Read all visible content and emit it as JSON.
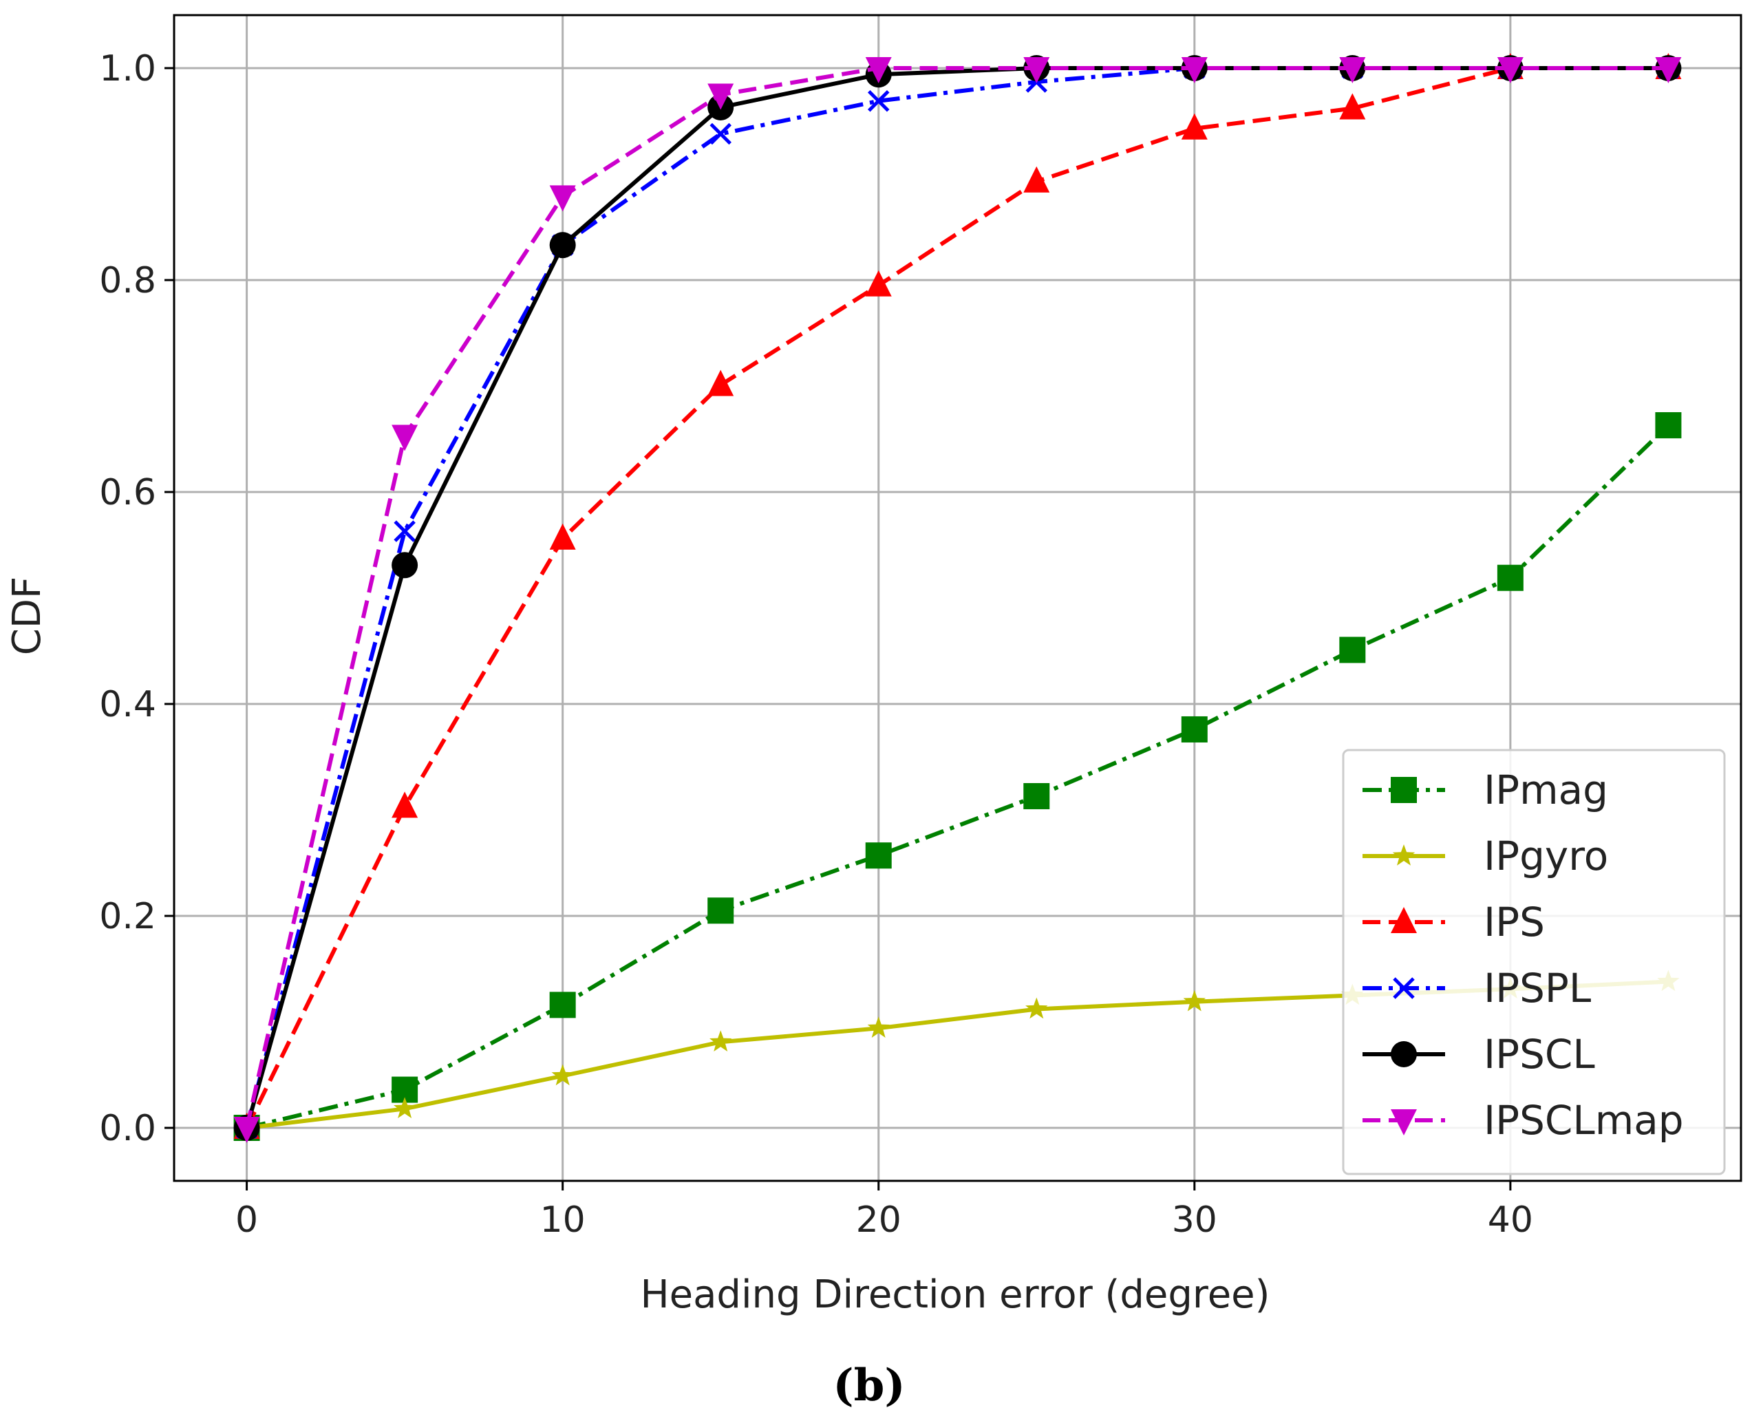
{
  "chart_data": {
    "type": "line",
    "xlabel": "Heading Direction error (degree)",
    "ylabel": "CDF",
    "xlim": [
      -2.3,
      47.3
    ],
    "ylim": [
      -0.05,
      1.05
    ],
    "x_ticks": [
      "0",
      "10",
      "20",
      "30",
      "40"
    ],
    "x_tick_values": [
      0,
      10,
      20,
      30,
      40
    ],
    "y_ticks": [
      "0.0",
      "0.2",
      "0.4",
      "0.6",
      "0.8",
      "1.0"
    ],
    "y_tick_values": [
      0.0,
      0.2,
      0.4,
      0.6,
      0.8,
      1.0
    ],
    "grid": true,
    "legend_position": "bottom-right",
    "x": [
      0,
      5,
      10,
      15,
      20,
      25,
      30,
      35,
      40,
      45
    ],
    "series": [
      {
        "name": "IPmag",
        "color": "#008000",
        "dash": "dashdot",
        "marker": "square",
        "values": [
          0.0,
          0.036,
          0.116,
          0.205,
          0.257,
          0.313,
          0.376,
          0.451,
          0.519,
          0.663
        ]
      },
      {
        "name": "IPgyro",
        "color": "#bfbf00",
        "dash": "solid",
        "marker": "star",
        "values": [
          0.0,
          0.018,
          0.049,
          0.081,
          0.094,
          0.112,
          0.119,
          0.125,
          0.131,
          0.138
        ]
      },
      {
        "name": "IPS",
        "color": "#ff0000",
        "dash": "dashed",
        "marker": "triangle-up",
        "values": [
          0.0,
          0.303,
          0.556,
          0.701,
          0.795,
          0.893,
          0.943,
          0.962,
          1.0,
          1.0
        ]
      },
      {
        "name": "IPSPL",
        "color": "#0000ff",
        "dash": "dashdot",
        "marker": "x",
        "values": [
          0.0,
          0.563,
          0.833,
          0.938,
          0.969,
          0.987,
          1.0,
          1.0,
          1.0,
          1.0
        ]
      },
      {
        "name": "IPSCL",
        "color": "#000000",
        "dash": "solid",
        "marker": "circle",
        "values": [
          0.0,
          0.531,
          0.833,
          0.963,
          0.994,
          1.0,
          1.0,
          1.0,
          1.0,
          1.0
        ]
      },
      {
        "name": "IPSCLmap",
        "color": "#cc00cc",
        "dash": "dashed",
        "marker": "triangle-down",
        "values": [
          0.0,
          0.653,
          0.879,
          0.975,
          1.0,
          1.0,
          1.0,
          1.0,
          1.0,
          1.0
        ]
      }
    ]
  },
  "caption": "(b)"
}
